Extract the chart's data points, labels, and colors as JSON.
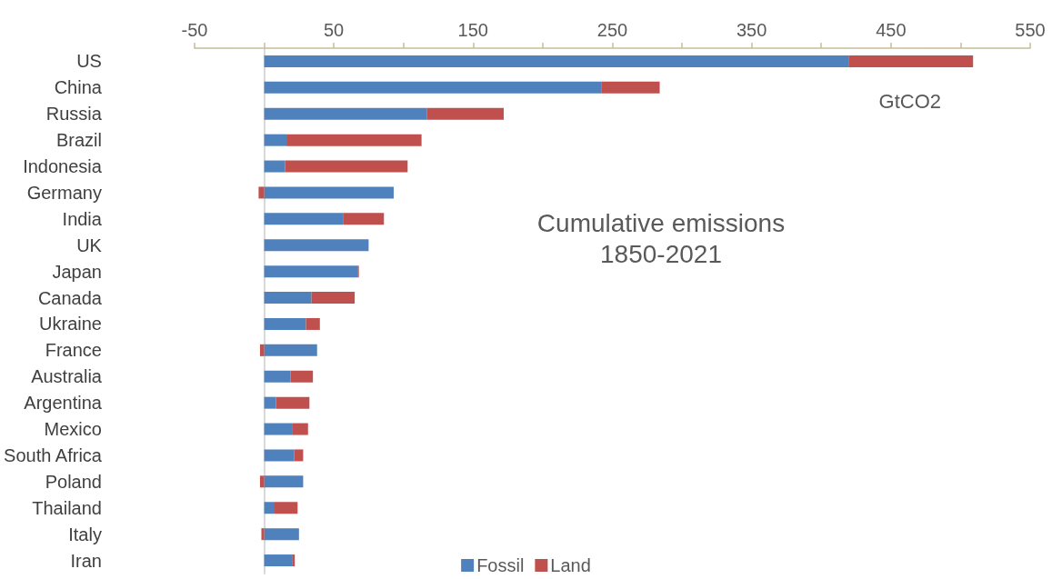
{
  "chart_data": {
    "type": "bar",
    "orientation": "horizontal",
    "stacked": true,
    "title": "Cumulative emissions\n1850-2021",
    "annotations": [
      "GtCO2"
    ],
    "categories": [
      "US",
      "China",
      "Russia",
      "Brazil",
      "Indonesia",
      "Germany",
      "India",
      "UK",
      "Japan",
      "Canada",
      "Ukraine",
      "France",
      "Australia",
      "Argentina",
      "Mexico",
      "South Africa",
      "Poland",
      "Thailand",
      "Italy",
      "Iran"
    ],
    "series": [
      {
        "name": "Fossil",
        "color": "#4f81bd",
        "values": [
          420,
          242,
          117,
          16,
          15,
          93,
          57,
          75,
          67,
          34,
          30,
          38,
          19,
          8.5,
          20.5,
          21.5,
          28,
          7.5,
          25,
          20
        ]
      },
      {
        "name": "Land",
        "color": "#c0504d",
        "values": [
          89,
          42,
          55,
          97,
          88,
          -4,
          29,
          0,
          1,
          31,
          10,
          -3,
          16,
          24,
          11,
          6.5,
          -3,
          16.5,
          -2,
          2
        ]
      }
    ],
    "xlim": [
      -50,
      550
    ],
    "xticks": [
      -50,
      {
        "value": 0,
        "label": null
      },
      50,
      {
        "value": 100,
        "label": null
      },
      150,
      {
        "value": 200,
        "label": null
      },
      250,
      {
        "value": 300,
        "label": null
      },
      350,
      {
        "value": 400,
        "label": null
      },
      450,
      {
        "value": 500,
        "label": null
      },
      550
    ],
    "legend": "bottom"
  }
}
